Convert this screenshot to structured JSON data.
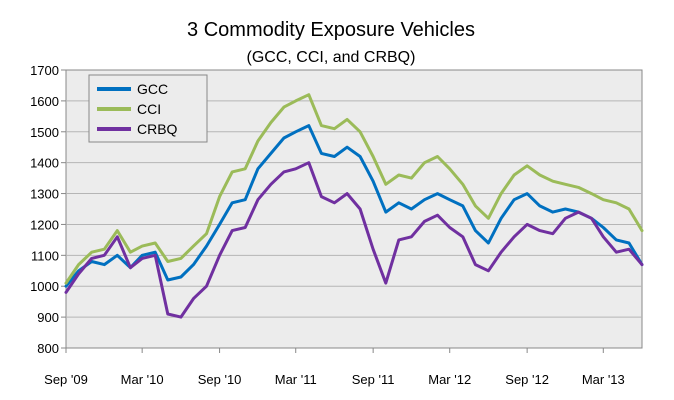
{
  "chart_data": {
    "type": "line",
    "title": "3 Commodity Exposure Vehicles",
    "subtitle": "(GCC, CCI, and CRBQ)",
    "xlabel": "",
    "ylabel": "",
    "ylim": [
      800,
      1700
    ],
    "y_ticks": [
      800,
      900,
      1000,
      1100,
      1200,
      1300,
      1400,
      1500,
      1600,
      1700
    ],
    "x_ticks": [
      {
        "label": "Sep '09",
        "date": "2009-09-01"
      },
      {
        "label": "Mar '10",
        "date": "2010-03-01"
      },
      {
        "label": "Sep '10",
        "date": "2010-09-01"
      },
      {
        "label": "Mar '11",
        "date": "2011-03-01"
      },
      {
        "label": "Sep '11",
        "date": "2011-09-01"
      },
      {
        "label": "Mar '12",
        "date": "2012-03-01"
      },
      {
        "label": "Sep '12",
        "date": "2012-09-01"
      },
      {
        "label": "Mar '13",
        "date": "2013-03-01"
      }
    ],
    "xlim": [
      "2009-09-01",
      "2013-06-01"
    ],
    "grid": "horizontal",
    "legend_position": "top-left",
    "series": [
      {
        "name": "GCC",
        "color": "#0070C0",
        "points": [
          [
            "2009-09-01",
            1000
          ],
          [
            "2009-10-01",
            1050
          ],
          [
            "2009-11-01",
            1080
          ],
          [
            "2009-12-01",
            1070
          ],
          [
            "2010-01-01",
            1100
          ],
          [
            "2010-02-01",
            1060
          ],
          [
            "2010-03-01",
            1100
          ],
          [
            "2010-04-01",
            1110
          ],
          [
            "2010-05-01",
            1020
          ],
          [
            "2010-06-01",
            1030
          ],
          [
            "2010-07-01",
            1070
          ],
          [
            "2010-08-01",
            1130
          ],
          [
            "2010-09-01",
            1200
          ],
          [
            "2010-10-01",
            1270
          ],
          [
            "2010-11-01",
            1280
          ],
          [
            "2010-12-01",
            1380
          ],
          [
            "2011-01-01",
            1430
          ],
          [
            "2011-02-01",
            1480
          ],
          [
            "2011-03-01",
            1500
          ],
          [
            "2011-04-01",
            1520
          ],
          [
            "2011-05-01",
            1430
          ],
          [
            "2011-06-01",
            1420
          ],
          [
            "2011-07-01",
            1450
          ],
          [
            "2011-08-01",
            1420
          ],
          [
            "2011-09-01",
            1340
          ],
          [
            "2011-10-01",
            1240
          ],
          [
            "2011-11-01",
            1270
          ],
          [
            "2011-12-01",
            1250
          ],
          [
            "2012-01-01",
            1280
          ],
          [
            "2012-02-01",
            1300
          ],
          [
            "2012-03-01",
            1280
          ],
          [
            "2012-04-01",
            1260
          ],
          [
            "2012-05-01",
            1180
          ],
          [
            "2012-06-01",
            1140
          ],
          [
            "2012-07-01",
            1220
          ],
          [
            "2012-08-01",
            1280
          ],
          [
            "2012-09-01",
            1300
          ],
          [
            "2012-10-01",
            1260
          ],
          [
            "2012-11-01",
            1240
          ],
          [
            "2012-12-01",
            1250
          ],
          [
            "2013-01-01",
            1240
          ],
          [
            "2013-02-01",
            1220
          ],
          [
            "2013-03-01",
            1190
          ],
          [
            "2013-04-01",
            1150
          ],
          [
            "2013-05-01",
            1140
          ],
          [
            "2013-06-01",
            1070
          ]
        ]
      },
      {
        "name": "CCI",
        "color": "#9BBB59",
        "points": [
          [
            "2009-09-01",
            1010
          ],
          [
            "2009-10-01",
            1070
          ],
          [
            "2009-11-01",
            1110
          ],
          [
            "2009-12-01",
            1120
          ],
          [
            "2010-01-01",
            1180
          ],
          [
            "2010-02-01",
            1110
          ],
          [
            "2010-03-01",
            1130
          ],
          [
            "2010-04-01",
            1140
          ],
          [
            "2010-05-01",
            1080
          ],
          [
            "2010-06-01",
            1090
          ],
          [
            "2010-07-01",
            1130
          ],
          [
            "2010-08-01",
            1170
          ],
          [
            "2010-09-01",
            1290
          ],
          [
            "2010-10-01",
            1370
          ],
          [
            "2010-11-01",
            1380
          ],
          [
            "2010-12-01",
            1470
          ],
          [
            "2011-01-01",
            1530
          ],
          [
            "2011-02-01",
            1580
          ],
          [
            "2011-03-01",
            1600
          ],
          [
            "2011-04-01",
            1620
          ],
          [
            "2011-05-01",
            1520
          ],
          [
            "2011-06-01",
            1510
          ],
          [
            "2011-07-01",
            1540
          ],
          [
            "2011-08-01",
            1500
          ],
          [
            "2011-09-01",
            1420
          ],
          [
            "2011-10-01",
            1330
          ],
          [
            "2011-11-01",
            1360
          ],
          [
            "2011-12-01",
            1350
          ],
          [
            "2012-01-01",
            1400
          ],
          [
            "2012-02-01",
            1420
          ],
          [
            "2012-03-01",
            1380
          ],
          [
            "2012-04-01",
            1330
          ],
          [
            "2012-05-01",
            1260
          ],
          [
            "2012-06-01",
            1220
          ],
          [
            "2012-07-01",
            1300
          ],
          [
            "2012-08-01",
            1360
          ],
          [
            "2012-09-01",
            1390
          ],
          [
            "2012-10-01",
            1360
          ],
          [
            "2012-11-01",
            1340
          ],
          [
            "2012-12-01",
            1330
          ],
          [
            "2013-01-01",
            1320
          ],
          [
            "2013-02-01",
            1300
          ],
          [
            "2013-03-01",
            1280
          ],
          [
            "2013-04-01",
            1270
          ],
          [
            "2013-05-01",
            1250
          ],
          [
            "2013-06-01",
            1180
          ]
        ]
      },
      {
        "name": "CRBQ",
        "color": "#7030A0",
        "points": [
          [
            "2009-09-01",
            980
          ],
          [
            "2009-10-01",
            1040
          ],
          [
            "2009-11-01",
            1090
          ],
          [
            "2009-12-01",
            1100
          ],
          [
            "2010-01-01",
            1160
          ],
          [
            "2010-02-01",
            1060
          ],
          [
            "2010-03-01",
            1090
          ],
          [
            "2010-04-01",
            1100
          ],
          [
            "2010-05-01",
            910
          ],
          [
            "2010-06-01",
            900
          ],
          [
            "2010-07-01",
            960
          ],
          [
            "2010-08-01",
            1000
          ],
          [
            "2010-09-01",
            1100
          ],
          [
            "2010-10-01",
            1180
          ],
          [
            "2010-11-01",
            1190
          ],
          [
            "2010-12-01",
            1280
          ],
          [
            "2011-01-01",
            1330
          ],
          [
            "2011-02-01",
            1370
          ],
          [
            "2011-03-01",
            1380
          ],
          [
            "2011-04-01",
            1400
          ],
          [
            "2011-05-01",
            1290
          ],
          [
            "2011-06-01",
            1270
          ],
          [
            "2011-07-01",
            1300
          ],
          [
            "2011-08-01",
            1250
          ],
          [
            "2011-09-01",
            1120
          ],
          [
            "2011-10-01",
            1010
          ],
          [
            "2011-11-01",
            1150
          ],
          [
            "2011-12-01",
            1160
          ],
          [
            "2012-01-01",
            1210
          ],
          [
            "2012-02-01",
            1230
          ],
          [
            "2012-03-01",
            1190
          ],
          [
            "2012-04-01",
            1160
          ],
          [
            "2012-05-01",
            1070
          ],
          [
            "2012-06-01",
            1050
          ],
          [
            "2012-07-01",
            1110
          ],
          [
            "2012-08-01",
            1160
          ],
          [
            "2012-09-01",
            1200
          ],
          [
            "2012-10-01",
            1180
          ],
          [
            "2012-11-01",
            1170
          ],
          [
            "2012-12-01",
            1220
          ],
          [
            "2013-01-01",
            1240
          ],
          [
            "2013-02-01",
            1220
          ],
          [
            "2013-03-01",
            1160
          ],
          [
            "2013-04-01",
            1110
          ],
          [
            "2013-05-01",
            1120
          ],
          [
            "2013-06-01",
            1070
          ]
        ]
      }
    ]
  }
}
